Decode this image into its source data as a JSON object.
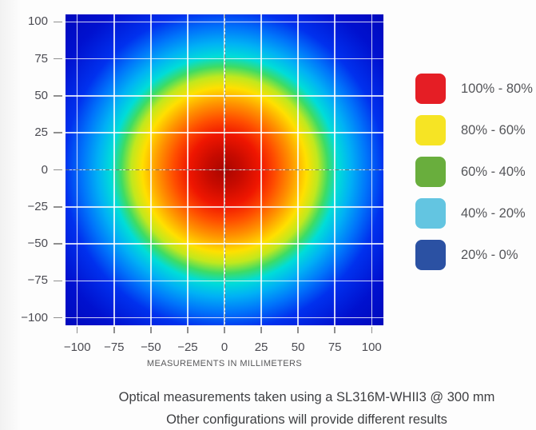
{
  "page": {
    "background": "#fdfdfd"
  },
  "chart_data": {
    "type": "heatmap",
    "title": "",
    "xlabel": "MEASUREMENTS IN MILLIMETERS",
    "ylabel": "",
    "x_range": [
      -108,
      108
    ],
    "y_range": [
      -105,
      105
    ],
    "x_ticks": [
      -100,
      -75,
      -50,
      -25,
      0,
      25,
      50,
      75,
      100
    ],
    "y_ticks": [
      100,
      75,
      50,
      25,
      0,
      -25,
      -50,
      -75,
      -100
    ],
    "grid": true,
    "grid_color": "rgba(255,255,255,0.8)",
    "crosshair": {
      "x": 0,
      "y": 0,
      "style": "dash-dot",
      "color": "rgba(10,10,10,0.5)"
    },
    "description": "Radial optical intensity distribution (jet colormap): 100% at beam center (0,0) mm, decreasing to ~0% at the plot corners.",
    "radial_gradient_stops": [
      {
        "pct": 0,
        "radius_mm": 0,
        "intensity_pct": 100,
        "color": "#a90600"
      },
      {
        "pct": 8,
        "radius_mm": 12,
        "intensity_pct": 96,
        "color": "#c80b00"
      },
      {
        "pct": 16,
        "radius_mm": 24,
        "intensity_pct": 90,
        "color": "#ef1600"
      },
      {
        "pct": 23,
        "radius_mm": 35,
        "intensity_pct": 82,
        "color": "#ff4d00"
      },
      {
        "pct": 30,
        "radius_mm": 46,
        "intensity_pct": 74,
        "color": "#ff9300"
      },
      {
        "pct": 37,
        "radius_mm": 57,
        "intensity_pct": 65,
        "color": "#ffe000"
      },
      {
        "pct": 42,
        "radius_mm": 64,
        "intensity_pct": 57,
        "color": "#c0e81e"
      },
      {
        "pct": 46.5,
        "radius_mm": 71,
        "intensity_pct": 50,
        "color": "#3edc64"
      },
      {
        "pct": 51,
        "radius_mm": 78,
        "intensity_pct": 44,
        "color": "#00ddd8"
      },
      {
        "pct": 57,
        "radius_mm": 87,
        "intensity_pct": 36,
        "color": "#00b1f5"
      },
      {
        "pct": 64,
        "radius_mm": 98,
        "intensity_pct": 27,
        "color": "#0075fb"
      },
      {
        "pct": 72,
        "radius_mm": 110,
        "intensity_pct": 18,
        "color": "#0031ee"
      },
      {
        "pct": 86,
        "radius_mm": 131,
        "intensity_pct": 7,
        "color": "#0011cf"
      },
      {
        "pct": 100,
        "radius_mm": 153,
        "intensity_pct": 0,
        "color": "#0009bd"
      }
    ],
    "legend": {
      "position": "right",
      "entries": [
        {
          "label": "100% - 80%",
          "color": "#e51e25"
        },
        {
          "label": "80% - 60%",
          "color": "#f6e424"
        },
        {
          "label": "60% - 40%",
          "color": "#69ae3d"
        },
        {
          "label": "40% - 20%",
          "color": "#63c5e1"
        },
        {
          "label": "20% - 0%",
          "color": "#2b51a3"
        }
      ]
    }
  },
  "caption": {
    "line1": "Optical measurements taken using a SL316M-WHII3 @ 300 mm",
    "line2": "Other configurations will provide different results"
  }
}
